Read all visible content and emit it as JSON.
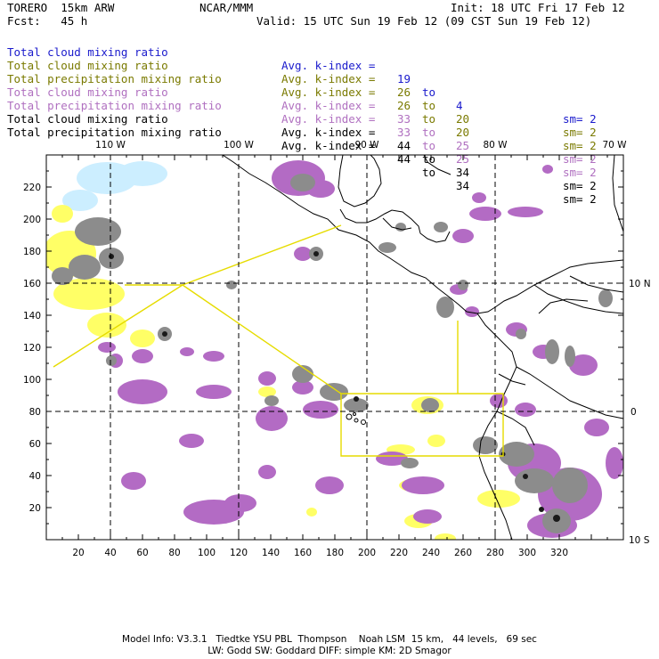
{
  "header": {
    "model": "TORERO  15km ARW",
    "org": "NCAR/MMM",
    "init": "Init: 18 UTC Fri 17 Feb 12",
    "fcst": "Fcst:   45 h",
    "valid": "Valid: 15 UTC Sun 19 Feb 12 (09 CST Sun 19 Feb 12)"
  },
  "legend": [
    {
      "field": "Total cloud mixing ratio",
      "label": "Avg. k-index =",
      "from": "19",
      "to_word": "to",
      "to": "4",
      "sm": "sm= 2",
      "color": "#1a1acc"
    },
    {
      "field": "Total cloud mixing ratio",
      "label": "Avg. k-index =",
      "from": "26",
      "to_word": "to",
      "to": "20",
      "sm": "sm= 2",
      "color": "#7a7a00"
    },
    {
      "field": "Total precipitation mixing ratio",
      "label": "Avg. k-index =",
      "from": "26",
      "to_word": "to",
      "to": "20",
      "sm": "sm= 2",
      "color": "#7a7a00"
    },
    {
      "field": "Total cloud mixing ratio",
      "label": "Avg. k-index =",
      "from": "33",
      "to_word": "to",
      "to": "25",
      "sm": "sm= 2",
      "color": "#b070c0"
    },
    {
      "field": "Total precipitation mixing ratio",
      "label": "Avg. k-index =",
      "from": "33",
      "to_word": "to",
      "to": "25",
      "sm": "sm= 2",
      "color": "#b070c0"
    },
    {
      "field": "Total cloud mixing ratio",
      "label": "Avg. k-index =",
      "from": "44",
      "to_word": "to",
      "to": "34",
      "sm": "sm= 2",
      "color": "#000000"
    },
    {
      "field": "Total precipitation mixing ratio",
      "label": "Avg. k-index =",
      "from": "44",
      "to_word": "to",
      "to": "34",
      "sm": "sm= 2",
      "color": "#000000"
    }
  ],
  "axes": {
    "x_ticks": [
      "20",
      "40",
      "60",
      "80",
      "100",
      "120",
      "140",
      "160",
      "180",
      "200",
      "220",
      "240",
      "260",
      "280",
      "300",
      "320"
    ],
    "y_ticks": [
      "20",
      "40",
      "60",
      "80",
      "100",
      "120",
      "140",
      "160",
      "180",
      "200",
      "220"
    ],
    "lon_labels": [
      "110 W",
      "100 W",
      "90 W",
      "80 W",
      "70 W"
    ],
    "lat_labels": [
      "10 N",
      "0",
      "10 S"
    ]
  },
  "footer": {
    "line1": "Model Info: V3.3.1   Tiedtke YSU PBL  Thompson    Noah LSM  15 km,   44 levels,   69 sec",
    "line2": "LW: Godd SW: Goddard DIFF: simple KM: 2D Smagor"
  },
  "colors": {
    "purple": "#b36bc4",
    "gray": "#8c8c8c",
    "dark": "#1a1a1a",
    "yellow": "#ffff66",
    "lightblue": "#cceeff",
    "domain": "#e6dc00"
  }
}
